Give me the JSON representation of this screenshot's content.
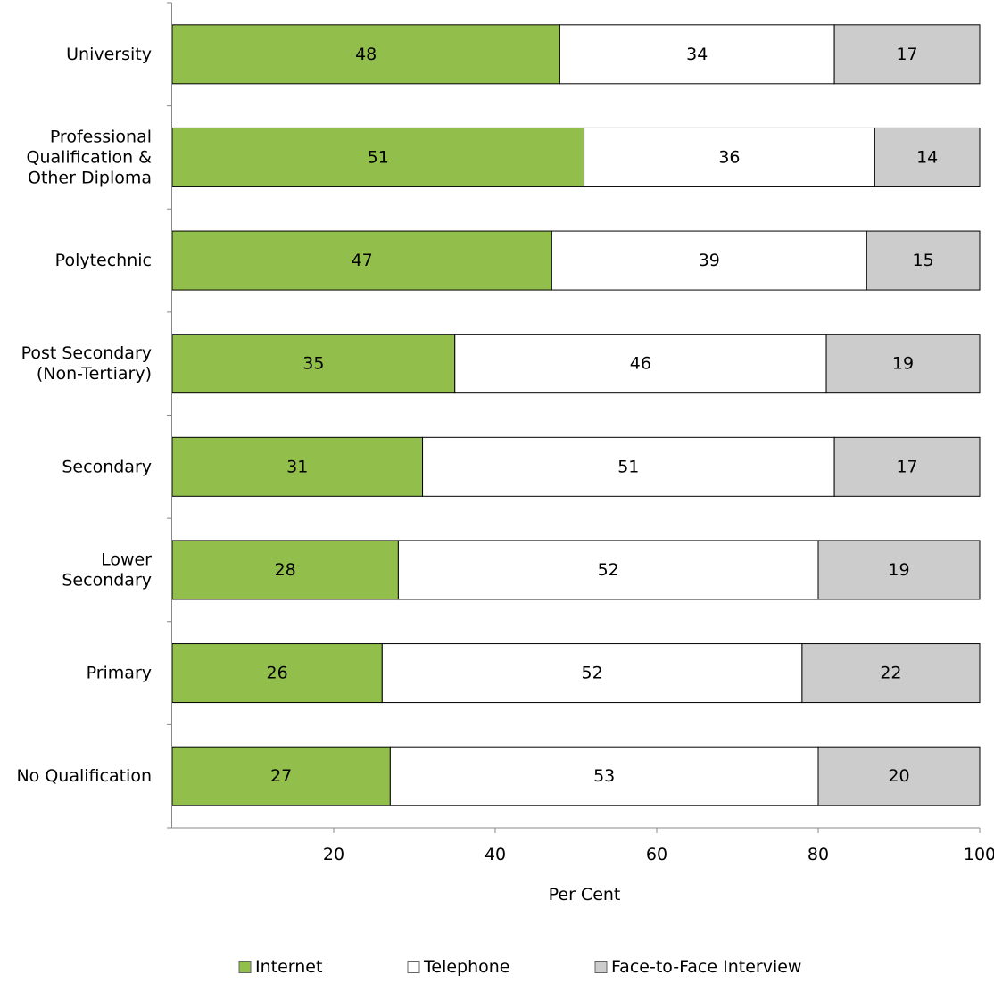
{
  "chart_data": {
    "type": "bar",
    "orientation": "horizontal",
    "stacked": true,
    "title": "",
    "xlabel": "Per Cent",
    "ylabel": "",
    "xlim": [
      0,
      100
    ],
    "x_ticks": [
      20,
      40,
      60,
      80,
      100
    ],
    "grid": false,
    "legend_position": "bottom",
    "categories": [
      [
        "University"
      ],
      [
        "Professional",
        "Qualification &",
        "Other Diploma"
      ],
      [
        "Polytechnic"
      ],
      [
        "Post Secondary",
        "(Non-Tertiary)"
      ],
      [
        "Secondary"
      ],
      [
        "Lower",
        "Secondary"
      ],
      [
        "Primary"
      ],
      [
        "No Qualification"
      ]
    ],
    "series": [
      {
        "name": "Internet",
        "color": "#92bf4c",
        "values": [
          48,
          51,
          47,
          35,
          31,
          28,
          26,
          27
        ]
      },
      {
        "name": "Telephone",
        "color": "#ffffff",
        "values": [
          34,
          36,
          39,
          46,
          51,
          52,
          52,
          53
        ]
      },
      {
        "name": "Face-to-Face Interview",
        "color": "#cccccc",
        "values": [
          17,
          14,
          15,
          19,
          17,
          19,
          22,
          20
        ]
      }
    ]
  }
}
